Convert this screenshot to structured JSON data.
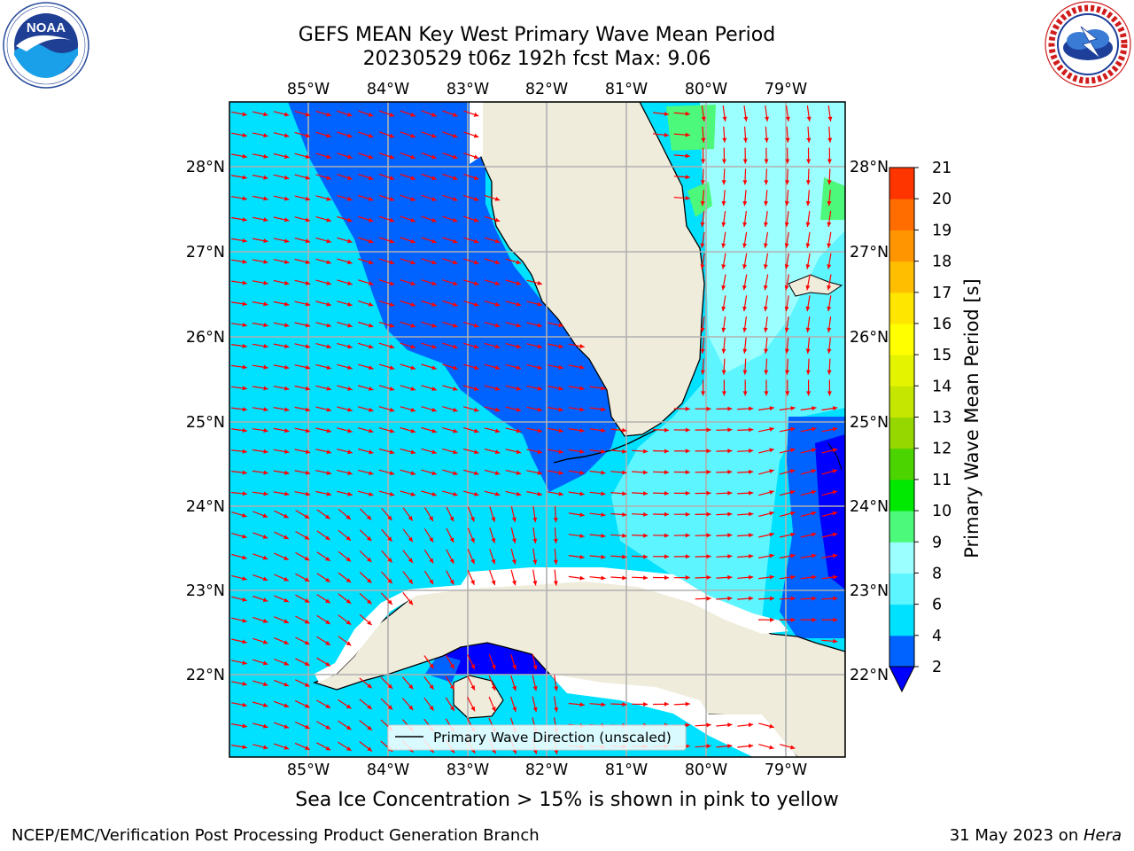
{
  "header": {
    "title_line1": "GEFS MEAN Key West Primary Wave Mean Period",
    "title_line2": "20230529 t06z 192h fcst   Max: 9.06"
  },
  "logos": {
    "left": {
      "name": "noaa-logo",
      "text": "NOAA",
      "ring_text": "NATIONAL OCEANIC AND ATMOSPHERIC ADMINISTRATION · U.S. DEPARTMENT OF COMMERCE"
    },
    "right": {
      "name": "nws-logo",
      "ring_text": "NATIONAL WEATHER SERVICE"
    }
  },
  "map": {
    "lon_labels": [
      "85°W",
      "84°W",
      "83°W",
      "82°W",
      "81°W",
      "80°W",
      "79°W"
    ],
    "lat_labels": [
      "28°N",
      "27°N",
      "26°N",
      "25°N",
      "24°N",
      "23°N",
      "22°N"
    ],
    "legend_label": "Primary Wave Direction (unscaled)",
    "vector_color": "#ff0000",
    "land_color": "#efecdc",
    "grid": true
  },
  "colorbar": {
    "label": "Primary Wave Mean Period [s]",
    "ticks": [
      "2",
      "4",
      "6",
      "8",
      "9",
      "10",
      "11",
      "12",
      "13",
      "14",
      "15",
      "16",
      "17",
      "18",
      "19",
      "20",
      "21"
    ],
    "colors": [
      "#0063ff",
      "#00e1ff",
      "#5df5ff",
      "#9cffff",
      "#4cf97a",
      "#01e801",
      "#4cd400",
      "#96d700",
      "#c4e600",
      "#e4f400",
      "#ffff00",
      "#ffe600",
      "#ffbe00",
      "#ff9500",
      "#ff6d00",
      "#ff3500",
      "#ff0000"
    ],
    "under_color": "#0000ff"
  },
  "footer": {
    "note": "Sea Ice Concentration > 15% is shown in pink to yellow",
    "left": "NCEP/EMC/Verification Post Processing Product Generation Branch",
    "right_date": "31 May 2023 on ",
    "right_machine": "Hera"
  }
}
